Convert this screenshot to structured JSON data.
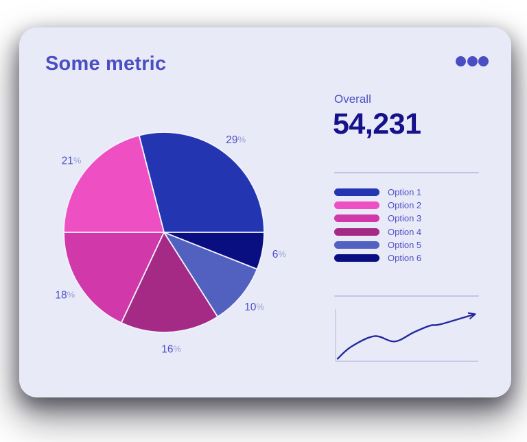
{
  "card": {
    "title": "Some metric",
    "menu_icon": "ellipsis-dots",
    "colors": {
      "card_background": "#e9eaf7",
      "accent": "#4a4dc3",
      "label": "#4c50c6",
      "value": "#15128c",
      "divider": "#c3c5e0",
      "spark_axis": "#c8cae4",
      "spark_line": "#242a9e",
      "slice_separator": "#f2f3fc"
    }
  },
  "overall": {
    "label": "Overall",
    "value": "54,231"
  },
  "chart_data": [
    {
      "type": "pie",
      "title": "Some metric",
      "labels": [
        "Option 1",
        "Option 2",
        "Option 3",
        "Option 4",
        "Option 5",
        "Option 6"
      ],
      "values": [
        29,
        21,
        18,
        16,
        10,
        6
      ],
      "slice_labels": [
        "29%",
        "21%",
        "18%",
        "16%",
        "10%",
        "6%"
      ],
      "colors": [
        "#2435b2",
        "#ee50c4",
        "#d138a9",
        "#a42a86",
        "#5260c0",
        "#090e81"
      ],
      "start_angle": 0,
      "direction": "counterclockwise",
      "label_radius_ratio": 1.17,
      "legend_position": "right"
    },
    {
      "type": "line",
      "name": "trend-sparkline",
      "x": [
        0,
        0.1,
        0.27,
        0.42,
        0.56,
        0.68,
        0.76,
        1.0
      ],
      "y": [
        0.05,
        0.3,
        0.52,
        0.41,
        0.6,
        0.74,
        0.77,
        0.97
      ],
      "arrow_end": true,
      "axes": "bare-L",
      "grid": false,
      "color": "#242a9e"
    }
  ]
}
